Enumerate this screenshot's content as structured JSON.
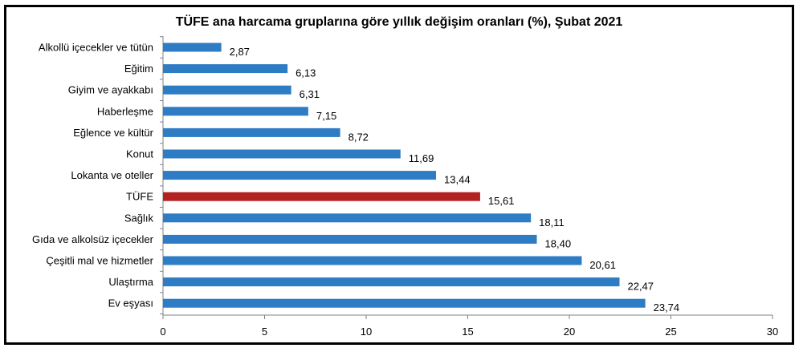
{
  "chart_data": {
    "type": "bar",
    "orientation": "horizontal",
    "title": "TÜFE ana harcama gruplarına göre yıllık değişim oranları (%), Şubat 2021",
    "categories": [
      "Alkollü içecekler ve tütün",
      "Eğitim",
      "Giyim ve ayakkabı",
      "Haberleşme",
      "Eğlence ve kültür",
      "Konut",
      "Lokanta ve oteller",
      "TÜFE",
      "Sağlık",
      "Gıda ve alkolsüz içecekler",
      "Çeşitli mal ve hizmetler",
      "Ulaştırma",
      "Ev eşyası"
    ],
    "values": [
      2.87,
      6.13,
      6.31,
      7.15,
      8.72,
      11.69,
      13.44,
      15.61,
      18.11,
      18.4,
      20.61,
      22.47,
      23.74
    ],
    "value_labels": [
      "2,87",
      "6,13",
      "6,31",
      "7,15",
      "8,72",
      "11,69",
      "13,44",
      "15,61",
      "18,11",
      "18,40",
      "20,61",
      "22,47",
      "23,74"
    ],
    "highlight_category": "TÜFE",
    "xlim": [
      0,
      30
    ],
    "x_ticks": [
      0,
      5,
      10,
      15,
      20,
      25,
      30
    ],
    "xlabel": "",
    "ylabel": "",
    "grid": false,
    "legend": "none",
    "colors": {
      "bar": "#2E7CC4",
      "highlight": "#B22222",
      "axis": "#808080"
    }
  }
}
